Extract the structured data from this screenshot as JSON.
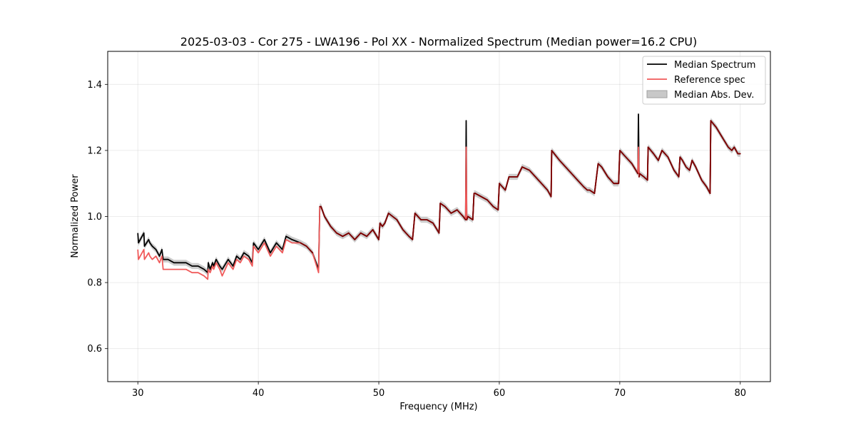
{
  "chart_data": {
    "type": "line",
    "title": "2025-03-03 - Cor 275 - LWA196 - Pol XX - Normalized Spectrum (Median power=16.2 CPU)",
    "xlabel": "Frequency (MHz)",
    "ylabel": "Normalized Power",
    "xlim": [
      27.5,
      82.5
    ],
    "ylim": [
      0.5,
      1.5
    ],
    "xticks": [
      30,
      40,
      50,
      60,
      70,
      80
    ],
    "yticks": [
      0.6,
      0.8,
      1.0,
      1.2,
      1.4
    ],
    "xtick_labels": [
      "30",
      "40",
      "50",
      "60",
      "70",
      "80"
    ],
    "ytick_labels": [
      "0.6",
      "0.8",
      "1.0",
      "1.2",
      "1.4"
    ],
    "grid": true,
    "legend_position": "upper right",
    "legend": [
      "Median Spectrum",
      "Reference spec",
      "Median Abs. Dev."
    ],
    "colors": {
      "median": "#000000",
      "reference": "#f05a5a",
      "mad_band": "#b0b0b0",
      "overlap": "#7a0000"
    },
    "mad_width": 0.009,
    "series": [
      {
        "name": "Median Spectrum",
        "x": [
          30.0,
          30.05,
          30.2,
          30.5,
          30.55,
          30.9,
          31.0,
          31.2,
          31.5,
          31.8,
          32.0,
          32.1,
          32.5,
          33.0,
          33.5,
          34.0,
          34.5,
          35.0,
          35.5,
          35.8,
          35.85,
          36.0,
          36.2,
          36.3,
          36.5,
          36.8,
          37.0,
          37.5,
          37.9,
          38.2,
          38.5,
          38.8,
          39.2,
          39.5,
          39.6,
          40.0,
          40.5,
          41.0,
          41.5,
          42.0,
          42.3,
          42.8,
          43.5,
          44.0,
          44.5,
          45.0,
          45.1,
          45.2,
          45.5,
          46.0,
          46.5,
          47.0,
          47.5,
          48.0,
          48.5,
          49.0,
          49.5,
          50.0,
          50.1,
          50.3,
          50.5,
          50.8,
          51.5,
          52.0,
          52.5,
          52.8,
          53.0,
          53.5,
          54.0,
          54.5,
          55.0,
          55.1,
          55.5,
          56.0,
          56.5,
          57.0,
          57.2,
          57.25,
          57.3,
          57.4,
          57.8,
          57.9,
          58.0,
          58.5,
          59.0,
          59.5,
          59.9,
          60.0,
          60.5,
          60.8,
          61.0,
          61.5,
          61.9,
          62.5,
          63.0,
          63.5,
          64.0,
          64.3,
          64.35,
          65.0,
          65.5,
          66.0,
          66.5,
          67.0,
          67.3,
          67.5,
          67.9,
          68.2,
          68.5,
          69.0,
          69.5,
          69.9,
          70.0,
          70.5,
          71.0,
          71.5,
          71.55,
          71.6,
          71.65,
          72.0,
          72.3,
          72.35,
          72.8,
          73.2,
          73.5,
          74.0,
          74.5,
          74.9,
          75.0,
          75.2,
          75.5,
          75.8,
          76.0,
          76.3,
          76.8,
          77.2,
          77.5,
          77.55,
          78.0,
          78.5,
          79.0,
          79.3,
          79.5,
          79.8,
          80.0
        ],
        "values": [
          0.95,
          0.92,
          0.93,
          0.95,
          0.91,
          0.93,
          0.92,
          0.91,
          0.9,
          0.88,
          0.9,
          0.87,
          0.87,
          0.86,
          0.86,
          0.86,
          0.85,
          0.85,
          0.84,
          0.83,
          0.86,
          0.84,
          0.86,
          0.85,
          0.87,
          0.85,
          0.84,
          0.87,
          0.85,
          0.88,
          0.87,
          0.89,
          0.88,
          0.86,
          0.92,
          0.9,
          0.93,
          0.89,
          0.92,
          0.9,
          0.94,
          0.93,
          0.92,
          0.91,
          0.89,
          0.84,
          1.03,
          1.03,
          1.0,
          0.97,
          0.95,
          0.94,
          0.95,
          0.93,
          0.95,
          0.94,
          0.96,
          0.93,
          0.98,
          0.97,
          0.98,
          1.01,
          0.99,
          0.96,
          0.94,
          0.93,
          1.01,
          0.99,
          0.99,
          0.98,
          0.95,
          1.04,
          1.03,
          1.01,
          1.02,
          1.0,
          0.99,
          1.29,
          0.99,
          1.0,
          0.99,
          1.07,
          1.07,
          1.06,
          1.05,
          1.03,
          1.02,
          1.1,
          1.08,
          1.12,
          1.12,
          1.12,
          1.15,
          1.14,
          1.12,
          1.1,
          1.08,
          1.06,
          1.2,
          1.17,
          1.15,
          1.13,
          1.11,
          1.09,
          1.08,
          1.08,
          1.07,
          1.16,
          1.15,
          1.12,
          1.1,
          1.1,
          1.2,
          1.18,
          1.16,
          1.13,
          1.31,
          1.12,
          1.13,
          1.12,
          1.11,
          1.21,
          1.19,
          1.17,
          1.2,
          1.18,
          1.14,
          1.12,
          1.18,
          1.17,
          1.15,
          1.14,
          1.17,
          1.15,
          1.11,
          1.09,
          1.07,
          1.29,
          1.27,
          1.24,
          1.21,
          1.2,
          1.21,
          1.19,
          1.19
        ]
      },
      {
        "name": "Reference spec",
        "x": [
          30.0,
          30.05,
          30.2,
          30.5,
          30.55,
          30.9,
          31.0,
          31.2,
          31.5,
          31.8,
          32.0,
          32.1,
          32.5,
          33.0,
          33.5,
          34.0,
          34.5,
          35.0,
          35.5,
          35.8,
          35.85,
          36.0,
          36.2,
          36.3,
          36.5,
          36.8,
          37.0,
          37.5,
          37.9,
          38.2,
          38.5,
          38.8,
          39.2,
          39.5,
          39.6,
          40.0,
          40.5,
          41.0,
          41.5,
          42.0,
          42.3,
          42.8,
          43.5,
          44.0,
          44.5,
          45.0,
          45.1,
          45.2,
          45.5,
          46.0,
          46.5,
          47.0,
          47.5,
          48.0,
          48.5,
          49.0,
          49.5,
          50.0,
          50.1,
          50.3,
          50.5,
          50.8,
          51.5,
          52.0,
          52.5,
          52.8,
          53.0,
          53.5,
          54.0,
          54.5,
          55.0,
          55.1,
          55.5,
          56.0,
          56.5,
          57.0,
          57.2,
          57.25,
          57.3,
          57.4,
          57.8,
          57.9,
          58.0,
          58.5,
          59.0,
          59.5,
          59.9,
          60.0,
          60.5,
          60.8,
          61.0,
          61.5,
          61.9,
          62.5,
          63.0,
          63.5,
          64.0,
          64.3,
          64.35,
          65.0,
          65.5,
          66.0,
          66.5,
          67.0,
          67.3,
          67.5,
          67.9,
          68.2,
          68.5,
          69.0,
          69.5,
          69.9,
          70.0,
          70.5,
          71.0,
          71.5,
          71.55,
          71.6,
          71.65,
          72.0,
          72.3,
          72.35,
          72.8,
          73.2,
          73.5,
          74.0,
          74.5,
          74.9,
          75.0,
          75.2,
          75.5,
          75.8,
          76.0,
          76.3,
          76.8,
          77.2,
          77.5,
          77.55,
          78.0,
          78.5,
          79.0,
          79.3,
          79.5,
          79.8,
          80.0
        ],
        "values": [
          0.9,
          0.87,
          0.88,
          0.9,
          0.87,
          0.89,
          0.88,
          0.87,
          0.88,
          0.86,
          0.88,
          0.84,
          0.84,
          0.84,
          0.84,
          0.84,
          0.83,
          0.83,
          0.82,
          0.81,
          0.84,
          0.83,
          0.85,
          0.84,
          0.86,
          0.84,
          0.82,
          0.86,
          0.84,
          0.87,
          0.86,
          0.88,
          0.87,
          0.85,
          0.91,
          0.89,
          0.92,
          0.88,
          0.91,
          0.89,
          0.93,
          0.92,
          0.92,
          0.91,
          0.89,
          0.83,
          1.03,
          1.03,
          1.0,
          0.97,
          0.95,
          0.94,
          0.95,
          0.93,
          0.95,
          0.94,
          0.96,
          0.93,
          0.98,
          0.97,
          0.98,
          1.01,
          0.99,
          0.96,
          0.94,
          0.93,
          1.01,
          0.99,
          0.99,
          0.98,
          0.95,
          1.04,
          1.03,
          1.01,
          1.02,
          1.0,
          0.99,
          1.21,
          0.99,
          1.0,
          0.99,
          1.07,
          1.07,
          1.06,
          1.05,
          1.03,
          1.02,
          1.1,
          1.08,
          1.12,
          1.12,
          1.12,
          1.15,
          1.14,
          1.12,
          1.1,
          1.08,
          1.06,
          1.2,
          1.17,
          1.15,
          1.13,
          1.11,
          1.09,
          1.08,
          1.08,
          1.07,
          1.16,
          1.15,
          1.12,
          1.1,
          1.1,
          1.2,
          1.18,
          1.16,
          1.13,
          1.21,
          1.12,
          1.13,
          1.12,
          1.11,
          1.21,
          1.19,
          1.17,
          1.2,
          1.18,
          1.14,
          1.12,
          1.18,
          1.17,
          1.15,
          1.14,
          1.17,
          1.15,
          1.11,
          1.09,
          1.07,
          1.29,
          1.27,
          1.24,
          1.21,
          1.2,
          1.21,
          1.19,
          1.19
        ]
      }
    ]
  }
}
